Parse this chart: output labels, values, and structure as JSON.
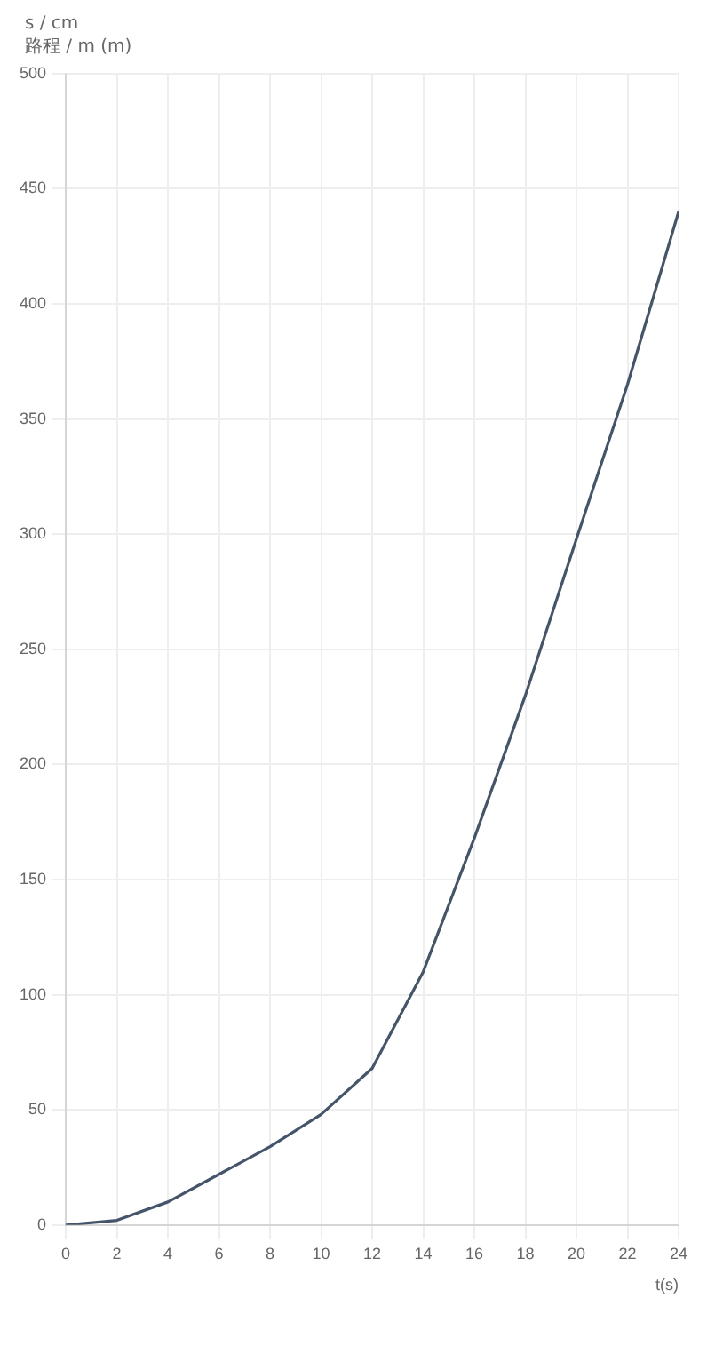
{
  "chart_data": {
    "type": "line",
    "ylabel": "s / cm",
    "subtitle": "路程 / m (m)",
    "xlabel": "t(s)",
    "x": [
      0,
      2,
      4,
      6,
      8,
      10,
      12,
      14,
      16,
      18,
      20,
      22,
      24
    ],
    "series": [
      {
        "color": "#44546a",
        "values": [
          0,
          2,
          10,
          22,
          34,
          48,
          68,
          110,
          168,
          230,
          298,
          365,
          440
        ]
      }
    ],
    "xlim": [
      0,
      24
    ],
    "xticks": [
      0,
      2,
      4,
      6,
      8,
      10,
      12,
      14,
      16,
      18,
      20,
      22,
      24
    ],
    "ylim": [
      0,
      500
    ],
    "yticks": [
      0,
      50,
      100,
      150,
      200,
      250,
      300,
      350,
      400,
      450,
      500
    ],
    "grid": true,
    "marker": "none",
    "line_style": "solid",
    "legend": false
  }
}
